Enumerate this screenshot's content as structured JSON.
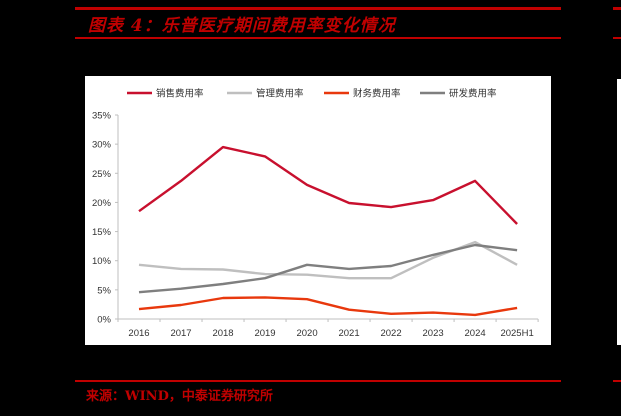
{
  "figure": {
    "title": "图表 4：乐普医疗期间费用率变化情况",
    "source": "来源：WIND，中泰证券研究所"
  },
  "chart_data": {
    "type": "line",
    "title": "乐普医疗期间费用率变化情况",
    "xlabel": "",
    "ylabel": "",
    "categories": [
      "2016",
      "2017",
      "2018",
      "2019",
      "2020",
      "2021",
      "2022",
      "2023",
      "2024",
      "2025H1"
    ],
    "yticks": [
      "0%",
      "5%",
      "10%",
      "15%",
      "20%",
      "25%",
      "30%",
      "35%"
    ],
    "ylim": [
      0,
      35
    ],
    "grid": false,
    "legend_position": "top",
    "series": [
      {
        "name": "销售费用率",
        "color": "#c8102e",
        "values": [
          18.5,
          23.7,
          29.5,
          27.9,
          23.0,
          19.9,
          19.2,
          20.4,
          23.7,
          16.3
        ]
      },
      {
        "name": "管理费用率",
        "color": "#bfbfbf",
        "values": [
          9.3,
          8.6,
          8.5,
          7.7,
          7.6,
          7.0,
          7.0,
          10.5,
          13.2,
          9.3
        ]
      },
      {
        "name": "财务费用率",
        "color": "#e8380d",
        "values": [
          1.7,
          2.4,
          3.6,
          3.7,
          3.4,
          1.6,
          0.9,
          1.1,
          0.7,
          1.9
        ]
      },
      {
        "name": "研发费用率",
        "color": "#7f7f7f",
        "values": [
          4.6,
          5.2,
          6.0,
          7.0,
          9.3,
          8.6,
          9.1,
          11.0,
          12.7,
          11.8
        ]
      }
    ]
  }
}
